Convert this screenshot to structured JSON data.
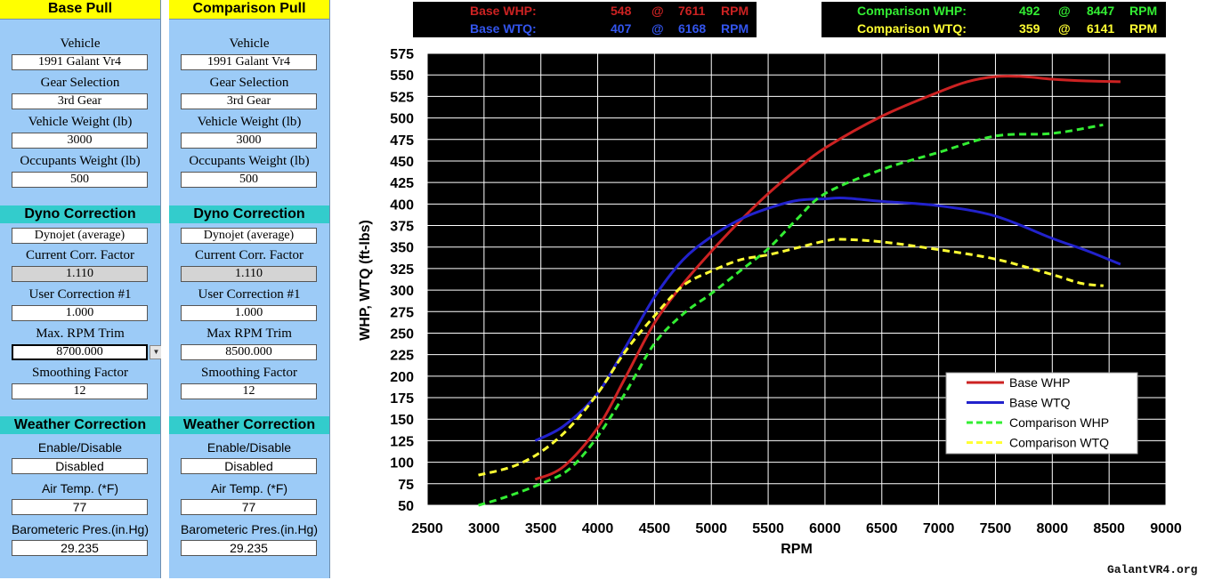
{
  "base_pull": {
    "title": "Base Pull",
    "vehicle_label": "Vehicle",
    "vehicle": "1991 Galant Vr4",
    "gear_label": "Gear Selection",
    "gear": "3rd Gear",
    "weight_label": "Vehicle Weight (lb)",
    "weight": "3000",
    "occupants_label": "Occupants Weight (lb)",
    "occupants": "500",
    "dyno_title": "Dyno Correction",
    "dyno_type": "Dynojet (average)",
    "corr_factor_label": "Current Corr. Factor",
    "corr_factor": "1.110",
    "user_corr_label": "User Correction #1",
    "user_corr": "1.000",
    "rpm_trim_label": "Max. RPM Trim",
    "rpm_trim": "8700.000",
    "smoothing_label": "Smoothing Factor",
    "smoothing": "12",
    "weather_title": "Weather Correction",
    "enable_label": "Enable/Disable",
    "enable": "Disabled",
    "air_temp_label": "Air Temp. (*F)",
    "air_temp": "77",
    "baro_label": "Barometeric Pres.(in.Hg)",
    "baro": "29.235"
  },
  "comparison_pull": {
    "title": "Comparison Pull",
    "vehicle_label": "Vehicle",
    "vehicle": "1991 Galant Vr4",
    "gear_label": "Gear Selection",
    "gear": "3rd Gear",
    "weight_label": "Vehicle Weight (lb)",
    "weight": "3000",
    "occupants_label": "Occupants Weight (lb)",
    "occupants": "500",
    "dyno_title": "Dyno Correction",
    "dyno_type": "Dynojet (average)",
    "corr_factor_label": "Current Corr. Factor",
    "corr_factor": "1.110",
    "user_corr_label": "User Correction #1",
    "user_corr": "1.000",
    "rpm_trim_label": "Max RPM Trim",
    "rpm_trim": "8500.000",
    "smoothing_label": "Smoothing Factor",
    "smoothing": "12",
    "weather_title": "Weather Correction",
    "enable_label": "Enable/Disable",
    "enable": "Disabled",
    "air_temp_label": "Air Temp. (*F)",
    "air_temp": "77",
    "baro_label": "Barometeric Pres.(in.Hg)",
    "baro": "29.235"
  },
  "peaks_base": {
    "whp_label": "Base WHP:",
    "whp": "548",
    "whp_at": "@",
    "whp_rpm": "7611",
    "whp_unit": "RPM",
    "wtq_label": "Base WTQ:",
    "wtq": "407",
    "wtq_at": "@",
    "wtq_rpm": "6168",
    "wtq_unit": "RPM"
  },
  "peaks_comparison": {
    "whp_label": "Comparison WHP:",
    "whp": "492",
    "whp_at": "@",
    "whp_rpm": "8447",
    "whp_unit": "RPM",
    "wtq_label": "Comparison WTQ:",
    "wtq": "359",
    "wtq_at": "@",
    "wtq_rpm": "6141",
    "wtq_unit": "RPM"
  },
  "watermark": "GalantVR4.org",
  "colors": {
    "base_whp": "#cc2222",
    "base_wtq": "#2222cc",
    "comp_whp": "#33ee33",
    "comp_wtq": "#ffff33",
    "plot_bg": "#000000",
    "panel_bg": "#9ccbf7",
    "title_bg": "#ffff00",
    "section_bg": "#33cccc"
  },
  "chart_data": {
    "type": "line",
    "xlabel": "RPM",
    "ylabel": "WHP, WTQ (ft-lbs)",
    "xlim": [
      2500,
      9000
    ],
    "ylim": [
      50,
      575
    ],
    "xticks": [
      2500,
      3000,
      3500,
      4000,
      4500,
      5000,
      5500,
      6000,
      6500,
      7000,
      7500,
      8000,
      8500,
      9000
    ],
    "yticks": [
      50,
      75,
      100,
      125,
      150,
      175,
      200,
      225,
      250,
      275,
      300,
      325,
      350,
      375,
      400,
      425,
      450,
      475,
      500,
      525,
      550,
      575
    ],
    "grid": true,
    "legend_position": "bottom-right",
    "series": [
      {
        "name": "Base WHP",
        "style": "solid",
        "color": "#cc2222",
        "x": [
          3450,
          3700,
          4000,
          4250,
          4500,
          4750,
          5000,
          5250,
          5500,
          5750,
          6000,
          6500,
          7000,
          7250,
          7500,
          7750,
          8000,
          8300,
          8600
        ],
        "y": [
          80,
          95,
          140,
          200,
          262,
          307,
          345,
          380,
          412,
          440,
          465,
          502,
          530,
          542,
          548,
          548,
          545,
          543,
          542
        ]
      },
      {
        "name": "Base WTQ",
        "style": "solid",
        "color": "#2222cc",
        "x": [
          3450,
          3700,
          4000,
          4250,
          4500,
          4750,
          5000,
          5250,
          5500,
          5750,
          6000,
          6168,
          6500,
          7000,
          7500,
          8000,
          8300,
          8600
        ],
        "y": [
          125,
          142,
          180,
          235,
          292,
          335,
          362,
          382,
          395,
          404,
          406,
          407,
          403,
          398,
          386,
          360,
          346,
          330
        ]
      },
      {
        "name": "Comparison WHP",
        "style": "dashed",
        "color": "#33ee33",
        "x": [
          2950,
          3200,
          3500,
          3750,
          4000,
          4250,
          4500,
          4750,
          5000,
          5250,
          5500,
          5750,
          6000,
          6500,
          7000,
          7500,
          8000,
          8447
        ],
        "y": [
          50,
          60,
          75,
          92,
          130,
          182,
          238,
          272,
          296,
          322,
          348,
          382,
          412,
          440,
          460,
          479,
          482,
          492
        ]
      },
      {
        "name": "Comparison WTQ",
        "style": "dashed",
        "color": "#ffff33",
        "x": [
          2950,
          3250,
          3500,
          3750,
          4000,
          4250,
          4500,
          4750,
          5000,
          5250,
          5500,
          5750,
          6000,
          6141,
          6500,
          7000,
          7500,
          8000,
          8250,
          8450
        ],
        "y": [
          85,
          95,
          112,
          140,
          180,
          230,
          270,
          305,
          322,
          335,
          341,
          349,
          357,
          359,
          356,
          347,
          336,
          318,
          308,
          305
        ]
      }
    ]
  }
}
